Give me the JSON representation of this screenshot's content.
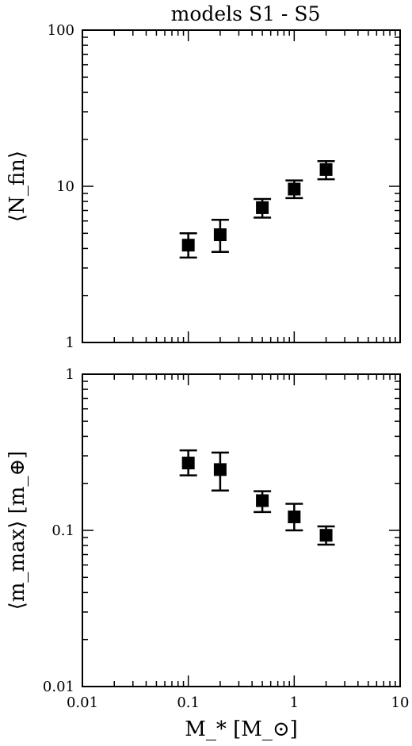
{
  "figure_title": "models S1 - S5",
  "chart_data": [
    {
      "type": "scatter",
      "panel": "top",
      "ylabel": "⟨N_fin⟩",
      "xlabel": "",
      "xscale": "log",
      "yscale": "log",
      "xlim": [
        0.01,
        10
      ],
      "ylim": [
        1,
        100
      ],
      "x_tick_labels": [],
      "y_tick_labels": [
        "1",
        "10",
        "100"
      ],
      "y_ticks": [
        1,
        10,
        100
      ],
      "series": [
        {
          "x": [
            0.1,
            0.2,
            0.5,
            1.0,
            2.0
          ],
          "y": [
            4.2,
            4.9,
            7.3,
            9.6,
            12.8
          ],
          "y_err_low": [
            3.5,
            3.8,
            6.3,
            8.4,
            11.1
          ],
          "y_err_high": [
            5.0,
            6.1,
            8.3,
            10.9,
            14.5
          ]
        }
      ]
    },
    {
      "type": "scatter",
      "panel": "bottom",
      "ylabel": "⟨m_max⟩ [m_⊕]",
      "xlabel": "M_* [M_⊙]",
      "xscale": "log",
      "yscale": "log",
      "xlim": [
        0.01,
        10
      ],
      "ylim": [
        0.01,
        1
      ],
      "x_tick_labels": [
        "0.01",
        "0.1",
        "1",
        "10"
      ],
      "x_ticks": [
        0.01,
        0.1,
        1,
        10
      ],
      "y_tick_labels": [
        "0.01",
        "0.1",
        "1"
      ],
      "y_ticks": [
        0.01,
        0.1,
        1
      ],
      "series": [
        {
          "x": [
            0.1,
            0.2,
            0.5,
            1.0,
            2.0
          ],
          "y": [
            0.27,
            0.245,
            0.155,
            0.122,
            0.093
          ],
          "y_err_low": [
            0.225,
            0.18,
            0.131,
            0.1,
            0.081
          ],
          "y_err_high": [
            0.325,
            0.315,
            0.178,
            0.148,
            0.106
          ]
        }
      ]
    }
  ]
}
